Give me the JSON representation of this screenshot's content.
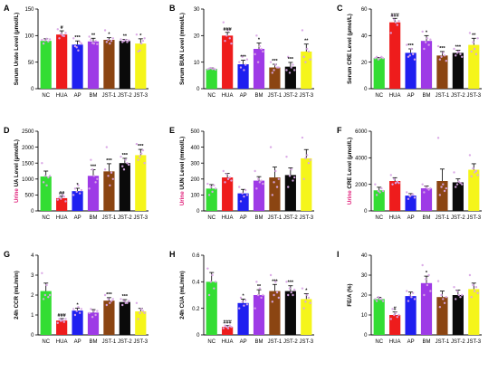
{
  "colors": {
    "NC": "#33dd33",
    "HUA": "#ee1c1c",
    "AP": "#1f1ff0",
    "BM": "#9e3ae6",
    "JST-1": "#8b4512",
    "JST-2": "#0a0a0a",
    "JST-3": "#f5f51a",
    "point": "#d9a6e6"
  },
  "chart_data": [
    {
      "type": "bar",
      "panel": "A",
      "ylabel": "Serum Urate Level (μmol/L)",
      "categories": [
        "NC",
        "HUA",
        "AP",
        "BM",
        "JST-1",
        "JST-2",
        "JST-3"
      ],
      "values": [
        90,
        102,
        83,
        89,
        92,
        90,
        85
      ],
      "errors": [
        4,
        7,
        7,
        6,
        4,
        3,
        9
      ],
      "ylim": [
        0,
        150
      ],
      "yticks": [
        0,
        50,
        100,
        150
      ],
      "annotations": [
        "",
        "#",
        "***",
        "**",
        "*",
        "**",
        "*"
      ],
      "points": [
        [
          92,
          85,
          91,
          94,
          89,
          93
        ],
        [
          112,
          95,
          103,
          100,
          99,
          105
        ],
        [
          95,
          80,
          78,
          72,
          88,
          85
        ],
        [
          98,
          92,
          86,
          85,
          90,
          84
        ],
        [
          110,
          88,
          92,
          85,
          90,
          95
        ],
        [
          93,
          88,
          90,
          92,
          88,
          91
        ],
        [
          102,
          70,
          72,
          85,
          90,
          95
        ]
      ]
    },
    {
      "type": "bar",
      "panel": "B",
      "ylabel": "Serum BUN Level (mmol/L)",
      "categories": [
        "NC",
        "HUA",
        "AP",
        "BM",
        "JST-1",
        "JST-2",
        "JST-3"
      ],
      "values": [
        7.5,
        20,
        9.2,
        15,
        8.0,
        8.3,
        14
      ],
      "errors": [
        0.3,
        1.2,
        1.5,
        2.2,
        1.2,
        1.6,
        2.8
      ],
      "ylim": [
        0,
        30
      ],
      "yticks": [
        0,
        10,
        20,
        30
      ],
      "annotations": [
        "",
        "###",
        "***",
        "*",
        "***",
        "***",
        "**"
      ],
      "points": [
        [
          7.3,
          7.6,
          7.8,
          7.4,
          7.5,
          7.2
        ],
        [
          25,
          18,
          20,
          22,
          19,
          17
        ],
        [
          10,
          8,
          12,
          7,
          9,
          11
        ],
        [
          13,
          20,
          10,
          16,
          15,
          14
        ],
        [
          10,
          6,
          7,
          9,
          8,
          8
        ],
        [
          7,
          12,
          6,
          8,
          9,
          7
        ],
        [
          22,
          12,
          10,
          15,
          14,
          11
        ]
      ]
    },
    {
      "type": "bar",
      "panel": "C",
      "ylabel": "Serum CRE Level (μmol/L)",
      "categories": [
        "NC",
        "HUA",
        "AP",
        "BM",
        "JST-1",
        "JST-2",
        "JST-3"
      ],
      "values": [
        23,
        50,
        27,
        36,
        25,
        27,
        33
      ],
      "errors": [
        0.5,
        3,
        3,
        4,
        3,
        2,
        5
      ],
      "ylim": [
        0,
        60
      ],
      "yticks": [
        0,
        20,
        40,
        60
      ],
      "annotations": [
        "",
        "###",
        "***",
        "*",
        "***",
        "***",
        "**"
      ],
      "points": [
        [
          23,
          24,
          22,
          23,
          24,
          23
        ],
        [
          42,
          55,
          52,
          50,
          48,
          51
        ],
        [
          33,
          24,
          25,
          30,
          26,
          22
        ],
        [
          43,
          30,
          35,
          38,
          33,
          37
        ],
        [
          32,
          22,
          24,
          27,
          25,
          21
        ],
        [
          30,
          25,
          27,
          28,
          26,
          24
        ],
        [
          42,
          28,
          35,
          30,
          26,
          38
        ]
      ]
    },
    {
      "type": "bar",
      "panel": "D",
      "ylabel": "Urine UA Level (μmol/L)",
      "ylabel_prefix": "Urine",
      "categories": [
        "NC",
        "HUA",
        "AP",
        "BM",
        "JST-1",
        "JST-2",
        "JST-3"
      ],
      "values": [
        1080,
        400,
        620,
        1100,
        1240,
        1500,
        1750
      ],
      "errors": [
        170,
        60,
        90,
        190,
        240,
        150,
        180
      ],
      "ylim": [
        0,
        2500
      ],
      "yticks": [
        0,
        500,
        1000,
        1500,
        2000,
        2500
      ],
      "annotations": [
        "",
        "##",
        "*",
        "***",
        "***",
        "***",
        "***"
      ],
      "points": [
        [
          1500,
          900,
          1100,
          800,
          1050,
          1100
        ],
        [
          350,
          420,
          380,
          500,
          450,
          300
        ],
        [
          500,
          700,
          600,
          800,
          550,
          650
        ],
        [
          700,
          1600,
          1300,
          1100,
          900,
          1000
        ],
        [
          1300,
          2000,
          1100,
          800,
          1200,
          1000
        ],
        [
          1700,
          1400,
          1300,
          1600,
          1500,
          1450
        ],
        [
          2100,
          1600,
          1700,
          1800,
          1900,
          1500
        ]
      ]
    },
    {
      "type": "bar",
      "panel": "E",
      "ylabel": "Urine UUN Level (mmol/L)",
      "ylabel_prefix": "Urine",
      "categories": [
        "NC",
        "HUA",
        "AP",
        "BM",
        "JST-1",
        "JST-2",
        "JST-3"
      ],
      "values": [
        140,
        210,
        110,
        190,
        210,
        225,
        330
      ],
      "errors": [
        25,
        25,
        25,
        25,
        65,
        45,
        55
      ],
      "ylim": [
        0,
        500
      ],
      "yticks": [
        0,
        100,
        200,
        300,
        400,
        500
      ],
      "annotations": [
        "",
        "",
        "",
        "",
        "",
        "",
        ""
      ],
      "points": [
        [
          170,
          100,
          150,
          120,
          160,
          140
        ],
        [
          250,
          180,
          230,
          200,
          210,
          190
        ],
        [
          150,
          60,
          110,
          90,
          130,
          100
        ],
        [
          250,
          140,
          200,
          180,
          190,
          170
        ],
        [
          400,
          100,
          180,
          250,
          150,
          200
        ],
        [
          340,
          150,
          220,
          260,
          190,
          210
        ],
        [
          460,
          200,
          330,
          350,
          300,
          320
        ]
      ]
    },
    {
      "type": "bar",
      "panel": "F",
      "ylabel": "Urine CRE Level (μmol/L)",
      "ylabel_prefix": "Urine",
      "categories": [
        "NC",
        "HUA",
        "AP",
        "BM",
        "JST-1",
        "JST-2",
        "JST-3"
      ],
      "values": [
        1550,
        2250,
        1150,
        1700,
        2250,
        2150,
        3100
      ],
      "errors": [
        230,
        250,
        150,
        180,
        900,
        260,
        450
      ],
      "ylim": [
        0,
        6000
      ],
      "yticks": [
        0,
        2000,
        4000,
        6000
      ],
      "annotations": [
        "",
        "",
        "",
        "",
        "",
        "",
        ""
      ],
      "points": [
        [
          2000,
          1200,
          1500,
          1400,
          1700,
          1500
        ],
        [
          2700,
          2000,
          2400,
          2100,
          2200,
          2100
        ],
        [
          1400,
          900,
          1100,
          1200,
          1250,
          1000
        ],
        [
          2000,
          1400,
          1800,
          1700,
          1600,
          1700
        ],
        [
          5500,
          1200,
          1800,
          2000,
          1500,
          1700
        ],
        [
          2900,
          1800,
          2000,
          2200,
          2100,
          2000
        ],
        [
          4200,
          2600,
          3200,
          2900,
          3000,
          2700
        ]
      ]
    },
    {
      "type": "bar",
      "panel": "G",
      "ylabel": "24h CCR (mL/min)",
      "categories": [
        "NC",
        "HUA",
        "AP",
        "BM",
        "JST-1",
        "JST-2",
        "JST-3"
      ],
      "values": [
        2.2,
        0.72,
        1.22,
        1.12,
        1.72,
        1.65,
        1.18
      ],
      "errors": [
        0.4,
        0.1,
        0.12,
        0.15,
        0.15,
        0.12,
        0.15
      ],
      "ylim": [
        0,
        4
      ],
      "yticks": [
        0,
        1,
        2,
        3,
        4
      ],
      "annotations": [
        "",
        "###",
        "*",
        "",
        "***",
        "***",
        ""
      ],
      "points": [
        [
          3.1,
          1.8,
          2.0,
          2.5,
          1.9,
          2.0
        ],
        [
          0.6,
          0.8,
          0.7,
          0.75,
          0.65,
          0.8
        ],
        [
          1.3,
          1.0,
          1.2,
          1.4,
          1.1,
          1.3
        ],
        [
          1.1,
          1.3,
          0.9,
          1.2,
          1.0,
          1.2
        ],
        [
          2.0,
          1.5,
          1.8,
          1.6,
          1.7,
          1.8
        ],
        [
          1.8,
          1.5,
          1.7,
          1.6,
          1.6,
          1.7
        ],
        [
          1.6,
          0.8,
          1.1,
          1.3,
          1.2,
          1.1
        ]
      ]
    },
    {
      "type": "bar",
      "panel": "H",
      "ylabel": "24h CUA (mL/min)",
      "categories": [
        "NC",
        "HUA",
        "AP",
        "BM",
        "JST-1",
        "JST-2",
        "JST-3"
      ],
      "values": [
        0.4,
        0.06,
        0.24,
        0.3,
        0.33,
        0.33,
        0.27
      ],
      "errors": [
        0.07,
        0.01,
        0.03,
        0.04,
        0.05,
        0.04,
        0.04
      ],
      "ylim": [
        0,
        0.6
      ],
      "yticks": [
        0.0,
        0.2,
        0.4,
        0.6
      ],
      "annotations": [
        "",
        "###",
        "*",
        "**",
        "***",
        "***",
        "*"
      ],
      "points": [
        [
          0.5,
          0.3,
          0.4,
          0.45,
          0.35,
          0.4
        ],
        [
          0.05,
          0.07,
          0.06,
          0.05,
          0.07,
          0.06
        ],
        [
          0.2,
          0.28,
          0.25,
          0.22,
          0.26,
          0.23
        ],
        [
          0.2,
          0.4,
          0.3,
          0.35,
          0.28,
          0.3
        ],
        [
          0.45,
          0.25,
          0.3,
          0.4,
          0.32,
          0.28
        ],
        [
          0.4,
          0.3,
          0.35,
          0.32,
          0.3,
          0.34
        ],
        [
          0.35,
          0.2,
          0.25,
          0.3,
          0.28,
          0.24
        ]
      ]
    },
    {
      "type": "bar",
      "panel": "I",
      "ylabel": "FE/A (%)",
      "categories": [
        "NC",
        "HUA",
        "AP",
        "BM",
        "JST-1",
        "JST-2",
        "JST-3"
      ],
      "values": [
        18,
        10,
        19.5,
        26,
        19,
        20,
        23
      ],
      "errors": [
        0.8,
        1.5,
        2.0,
        3.5,
        3.0,
        2.5,
        3.0
      ],
      "ylim": [
        0,
        40
      ],
      "yticks": [
        0,
        10,
        20,
        30,
        40
      ],
      "annotations": [
        "",
        "#",
        "",
        "*",
        "",
        "",
        ""
      ],
      "points": [
        [
          18,
          17,
          19,
          18,
          18,
          17
        ],
        [
          8,
          13,
          10,
          11,
          9,
          10
        ],
        [
          22,
          17,
          20,
          19,
          21,
          18
        ],
        [
          35,
          20,
          28,
          25,
          30,
          22
        ],
        [
          27,
          14,
          20,
          18,
          16,
          19
        ],
        [
          24,
          18,
          22,
          20,
          19,
          20
        ],
        [
          30,
          19,
          25,
          22,
          24,
          21
        ]
      ]
    }
  ]
}
